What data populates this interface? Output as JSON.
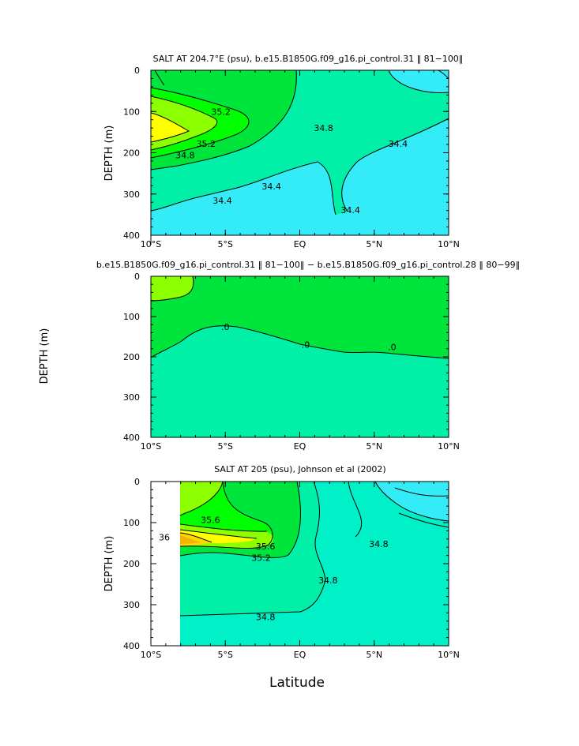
{
  "chart_data": [
    {
      "type": "contour",
      "title": "SALT AT 204.7°E (psu), b.e15.B1850G.f09_g16.pi_control.31 ‖ 81−100‖",
      "ylabel": "DEPTH (m)",
      "xlabel": "",
      "xlim": [
        -10,
        10
      ],
      "ylim": [
        0,
        400
      ],
      "xticks": [
        "10°S",
        "5°S",
        "EQ",
        "5°N",
        "10°N"
      ],
      "yticks": [
        "0",
        "100",
        "200",
        "300",
        "400"
      ],
      "levels": [
        34.4,
        34.8,
        35.2,
        35.6,
        36.0
      ],
      "contour_labels": [
        {
          "text": "35.2",
          "lat": -5.3,
          "depth": 100
        },
        {
          "text": "34.8",
          "lat": 1.6,
          "depth": 140
        },
        {
          "text": "35.2",
          "lat": -6.3,
          "depth": 178
        },
        {
          "text": "34.8",
          "lat": -7.7,
          "depth": 206
        },
        {
          "text": "34.4",
          "lat": 6.6,
          "depth": 178
        },
        {
          "text": "34.4",
          "lat": -5.2,
          "depth": 316
        },
        {
          "text": "34.4",
          "lat": -1.9,
          "depth": 281
        },
        {
          "text": "34.4",
          "lat": 3.4,
          "depth": 339
        }
      ]
    },
    {
      "type": "contour",
      "title": "b.e15.B1850G.f09_g16.pi_control.31 ‖ 81−100‖ − b.e15.B1850G.f09_g16.pi_control.28 ‖ 80−99‖",
      "ylabel": "DEPTH (m)",
      "xlabel": "",
      "xlim": [
        -10,
        10
      ],
      "ylim": [
        0,
        400
      ],
      "xticks": [
        "10°S",
        "5°S",
        "EQ",
        "5°N",
        "10°N"
      ],
      "yticks": [
        "0",
        "100",
        "200",
        "300",
        "400"
      ],
      "levels": [
        0.0
      ],
      "contour_labels": [
        {
          "text": ".0",
          "lat": -5.0,
          "depth": 125
        },
        {
          "text": ".0",
          "lat": 0.4,
          "depth": 170
        },
        {
          "text": ".0",
          "lat": 6.2,
          "depth": 175
        }
      ]
    },
    {
      "type": "contour",
      "title": "SALT AT 205 (psu), Johnson et al (2002)",
      "ylabel": "DEPTH (m)",
      "xlabel": "Latitude",
      "xlim": [
        -10,
        10
      ],
      "ylim": [
        0,
        400
      ],
      "xticks": [
        "10°S",
        "5°S",
        "EQ",
        "5°N",
        "10°N"
      ],
      "yticks": [
        "0",
        "100",
        "200",
        "300",
        "400"
      ],
      "levels": [
        34.4,
        34.6,
        34.8,
        35.0,
        35.2,
        35.4,
        35.6,
        35.8,
        36.0
      ],
      "contour_labels": [
        {
          "text": "35.6",
          "lat": -6.0,
          "depth": 93
        },
        {
          "text": "36",
          "lat": -9.1,
          "depth": 136
        },
        {
          "text": "35.6",
          "lat": -2.3,
          "depth": 158
        },
        {
          "text": "35.2",
          "lat": -2.6,
          "depth": 186
        },
        {
          "text": "34.8",
          "lat": 5.3,
          "depth": 152
        },
        {
          "text": "34.8",
          "lat": 1.9,
          "depth": 240
        },
        {
          "text": "34.8",
          "lat": -2.3,
          "depth": 330
        }
      ]
    }
  ]
}
